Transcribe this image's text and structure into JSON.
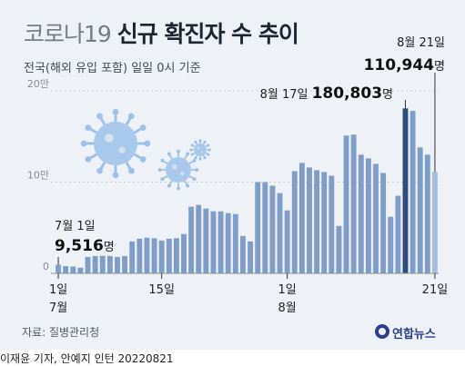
{
  "title_light": "코로나19",
  "title_bold": "신규 확진자 수 추이",
  "subtitle": "전국(해외 유입 포함) 일일 0시 기준",
  "source": "자료: 질병관리청",
  "logo": "연합뉴스",
  "credit": "이재윤 기자, 안예지 인턴 20220821",
  "colors": {
    "bar": "#7f9dc9",
    "highlight": "#2e4a7f",
    "last": "#a6bde0",
    "grid": "#c9ced6"
  },
  "chart_data": {
    "type": "bar",
    "title": "코로나19 신규 확진자 수 추이",
    "ylabel": "",
    "y_ticks": [
      {
        "value": 0,
        "label": "0"
      },
      {
        "value": 100000,
        "label": "10만"
      },
      {
        "value": 200000,
        "label": "20만"
      }
    ],
    "ylim": [
      0,
      210000
    ],
    "x_labels": [
      {
        "index": 0,
        "line1": "1일",
        "line2": "7월"
      },
      {
        "index": 14,
        "line1": "15일",
        "line2": ""
      },
      {
        "index": 31,
        "line1": "1일",
        "line2": "8월"
      },
      {
        "index": 51,
        "line1": "21일",
        "line2": ""
      }
    ],
    "values": [
      9516,
      8000,
      7500,
      6200,
      18000,
      19000,
      19200,
      19000,
      18000,
      19000,
      35000,
      38000,
      39000,
      38500,
      36000,
      38000,
      38500,
      43000,
      73000,
      75000,
      71000,
      68000,
      68000,
      66000,
      65000,
      41000,
      35000,
      100000,
      100000,
      96000,
      88000,
      69000,
      112000,
      121000,
      116000,
      113000,
      111000,
      107000,
      52000,
      151000,
      152000,
      130000,
      126000,
      120000,
      110000,
      62000,
      85000,
      180803,
      178000,
      138000,
      130000,
      110944
    ],
    "highlight_index": 47,
    "last_index": 51,
    "annotations": [
      {
        "index": 0,
        "date": "7월 1일",
        "value": "9,516",
        "unit": "명"
      },
      {
        "index": 47,
        "date": "8월 17일",
        "value": "180,803",
        "unit": "명"
      },
      {
        "index": 51,
        "date": "8월 21일",
        "value": "110,944",
        "unit": "명"
      }
    ]
  }
}
